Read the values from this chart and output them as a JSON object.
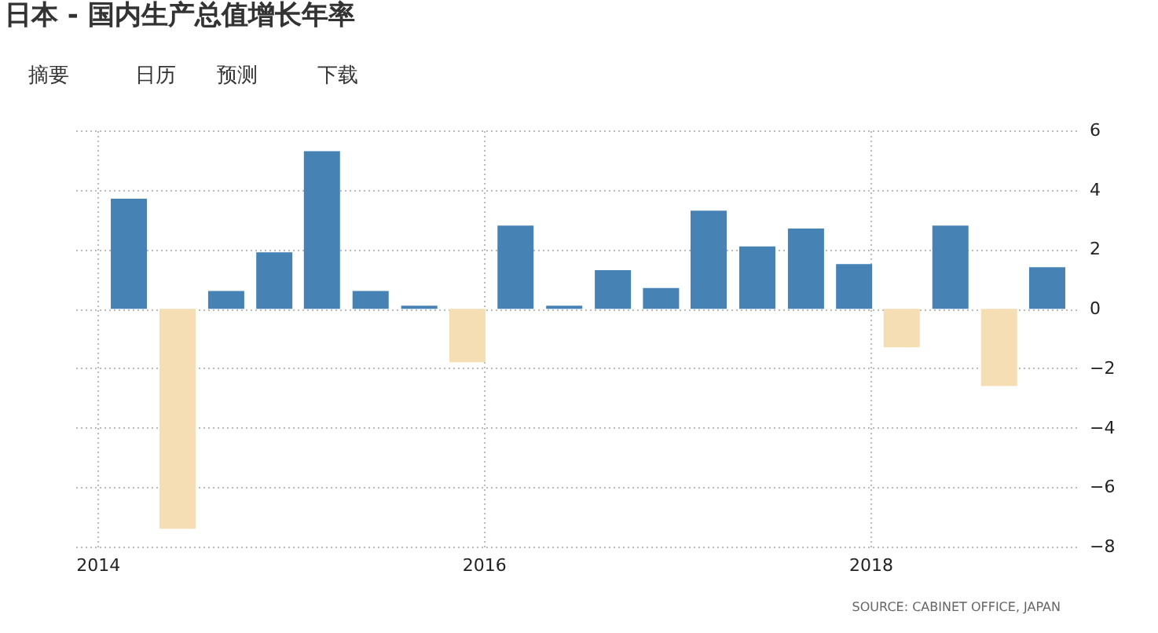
{
  "chart_data": {
    "type": "bar",
    "title": "日本 - 国内生产总值增长年率",
    "x": [
      "2014-03",
      "2014-06",
      "2014-09",
      "2014-12",
      "2015-03",
      "2015-06",
      "2015-09",
      "2015-12",
      "2016-03",
      "2016-06",
      "2016-09",
      "2016-12",
      "2017-03",
      "2017-06",
      "2017-09",
      "2017-12",
      "2018-03",
      "2018-06",
      "2018-09",
      "2018-12"
    ],
    "values": [
      3.7,
      -7.4,
      0.6,
      1.9,
      5.3,
      0.6,
      0.1,
      -1.8,
      2.8,
      0.1,
      1.3,
      0.7,
      3.3,
      2.1,
      2.7,
      1.5,
      -1.3,
      2.8,
      -2.6,
      1.4
    ],
    "colors": [
      "#4682b4",
      "#f5deb3",
      "#4682b4",
      "#4682b4",
      "#4682b4",
      "#4682b4",
      "#4682b4",
      "#f5deb3",
      "#4682b4",
      "#4682b4",
      "#4682b4",
      "#4682b4",
      "#4682b4",
      "#4682b4",
      "#4682b4",
      "#4682b4",
      "#f5deb3",
      "#4682b4",
      "#f5deb3",
      "#4682b4"
    ],
    "xlim": [
      "2013-11-20",
      "2019-01-25"
    ],
    "xticks": [
      {
        "value": "2014",
        "label": "2014"
      },
      {
        "value": "2016",
        "label": "2016"
      },
      {
        "value": "2018",
        "label": "2018"
      }
    ],
    "ylim": [
      -8,
      6
    ],
    "yticks": [
      -8,
      -6,
      -4,
      -2,
      0,
      2,
      4,
      6
    ],
    "grid": true,
    "annotations": [
      "摘要",
      "日历",
      "预测",
      "下载",
      "SOURCE: CABINET OFFICE, JAPAN"
    ]
  }
}
